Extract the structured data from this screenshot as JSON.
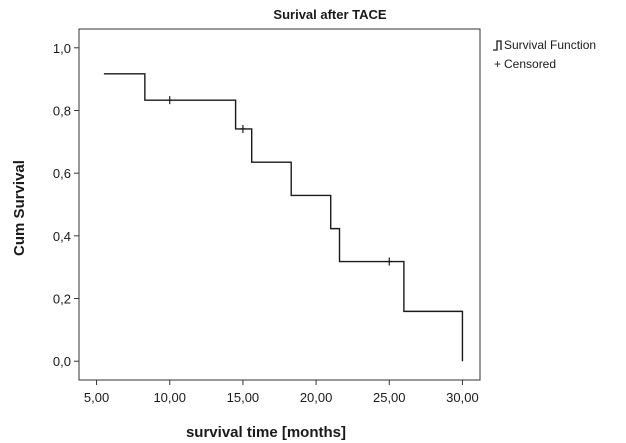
{
  "chart_data": {
    "type": "line",
    "step": true,
    "title": "Surival after TACE",
    "xlabel": "survival time [months]",
    "ylabel": "Cum Survival",
    "xlim": [
      3.8,
      31.2
    ],
    "ylim": [
      -0.06,
      1.06
    ],
    "x_ticks": [
      5,
      10,
      15,
      20,
      25,
      30
    ],
    "x_tick_labels": [
      "5,00",
      "10,00",
      "15,00",
      "20,00",
      "25,00",
      "30,00"
    ],
    "y_ticks": [
      0,
      0.2,
      0.4,
      0.6,
      0.8,
      1.0
    ],
    "y_tick_labels": [
      "0,0",
      "0,2",
      "0,4",
      "0,6",
      "0,8",
      "1,0"
    ],
    "grid": false,
    "legend_position": "top-right",
    "series": [
      {
        "name": "Survival Function",
        "color": "#1a1a1a",
        "x": [
          5.5,
          8.3,
          14.5,
          15.6,
          18.3,
          21.0,
          21.6,
          26.0,
          30.0
        ],
        "y": [
          0.917,
          0.833,
          0.741,
          0.635,
          0.529,
          0.423,
          0.318,
          0.159,
          0.0
        ]
      },
      {
        "name": "Censored",
        "marker": "+",
        "color": "#1a1a1a",
        "x": [
          10.0,
          15.0,
          25.0
        ],
        "y": [
          0.833,
          0.741,
          0.318
        ]
      }
    ]
  }
}
